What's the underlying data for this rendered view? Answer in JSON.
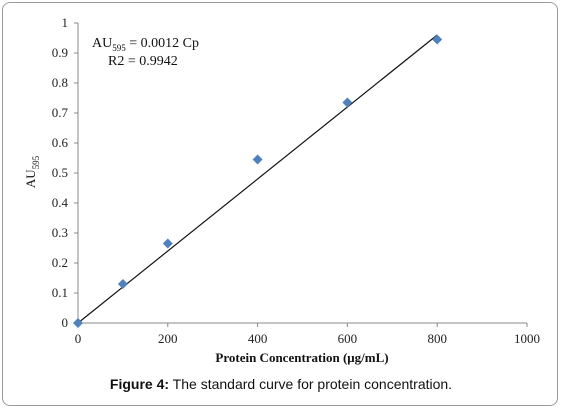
{
  "chart_data": {
    "type": "scatter",
    "xlabel": "Protein Concentration (μg/mL)",
    "ylabel": {
      "base": "AU",
      "sub": "595"
    },
    "xlim": [
      0,
      1000
    ],
    "ylim": [
      0,
      1
    ],
    "xticks": [
      "0",
      "200",
      "400",
      "600",
      "800",
      "1000"
    ],
    "yticks": [
      "0",
      "0.1",
      "0.2",
      "0.3",
      "0.4",
      "0.5",
      "0.6",
      "0.7",
      "0.8",
      "0.9",
      "1"
    ],
    "points": [
      {
        "x": 0,
        "y": 0.0
      },
      {
        "x": 100,
        "y": 0.13
      },
      {
        "x": 200,
        "y": 0.265
      },
      {
        "x": 400,
        "y": 0.545
      },
      {
        "x": 600,
        "y": 0.735
      },
      {
        "x": 800,
        "y": 0.945
      }
    ],
    "trendline": {
      "slope": 0.0012,
      "x_start": 0,
      "x_end": 800
    },
    "equation": {
      "base": "AU",
      "sub": "595",
      "rest": " = 0.0012 Cp"
    },
    "r2": "R2 = 0.9942",
    "marker_color": "#4f81bd",
    "grid": false
  },
  "caption": {
    "label": "Figure 4:",
    "text": " The standard curve for protein concentration."
  }
}
